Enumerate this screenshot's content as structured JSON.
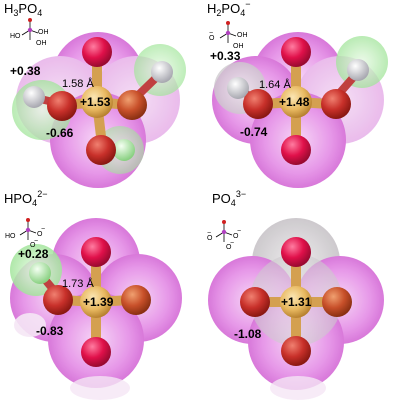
{
  "colors": {
    "cloud_magenta": "#e384e6",
    "cloud_light": "#f2c4f4",
    "cloud_green": "#a8eaa0",
    "cloud_gray": "#d4d0d4",
    "phosphorus": "#e8b860",
    "oxygen_red": "#c8302a",
    "oxygen_pink": "#e0104a",
    "hydrogen_green": "#b8ecb0",
    "hydrogen_white": "#e8e8ec",
    "bond_gold": "#d4a050"
  },
  "panels": [
    {
      "id": "h3po4",
      "title": "H",
      "sub1": "3",
      "title_mid": "PO",
      "sub2": "4",
      "sup": "",
      "center_charge": "+1.53",
      "hydrogen_charge": "+0.38",
      "oxygen_charge": "-0.66",
      "bond_length": "1.58 Å",
      "mini_labels": [
        "OH",
        "OH",
        "HO"
      ],
      "mini_signs": []
    },
    {
      "id": "h2po4",
      "title": "H",
      "sub1": "2",
      "title_mid": "PO",
      "sub2": "4",
      "sup": "−",
      "center_charge": "+1.48",
      "hydrogen_charge": "+0.33",
      "oxygen_charge": "-0.74",
      "bond_length": "1.64 Å",
      "mini_labels": [
        "OH",
        "OH"
      ],
      "mini_signs": [
        "O",
        "−"
      ]
    },
    {
      "id": "hpo4",
      "title": "HPO",
      "sub1": "",
      "title_mid": "",
      "sub2": "4",
      "sup": "2−",
      "center_charge": "+1.39",
      "hydrogen_charge": "+0.28",
      "oxygen_charge": "-0.83",
      "bond_length": "1.73 Å",
      "mini_labels": [
        "HO"
      ],
      "mini_signs": [
        "O",
        "−",
        "O",
        "−"
      ]
    },
    {
      "id": "po4",
      "title": "PO",
      "sub1": "",
      "title_mid": "",
      "sub2": "4",
      "sup": "3−",
      "center_charge": "+1.31",
      "hydrogen_charge": "",
      "oxygen_charge": "-1.08",
      "bond_length": "",
      "mini_labels": [],
      "mini_signs": [
        "O",
        "−",
        "O",
        "−",
        "O",
        "−"
      ]
    }
  ]
}
